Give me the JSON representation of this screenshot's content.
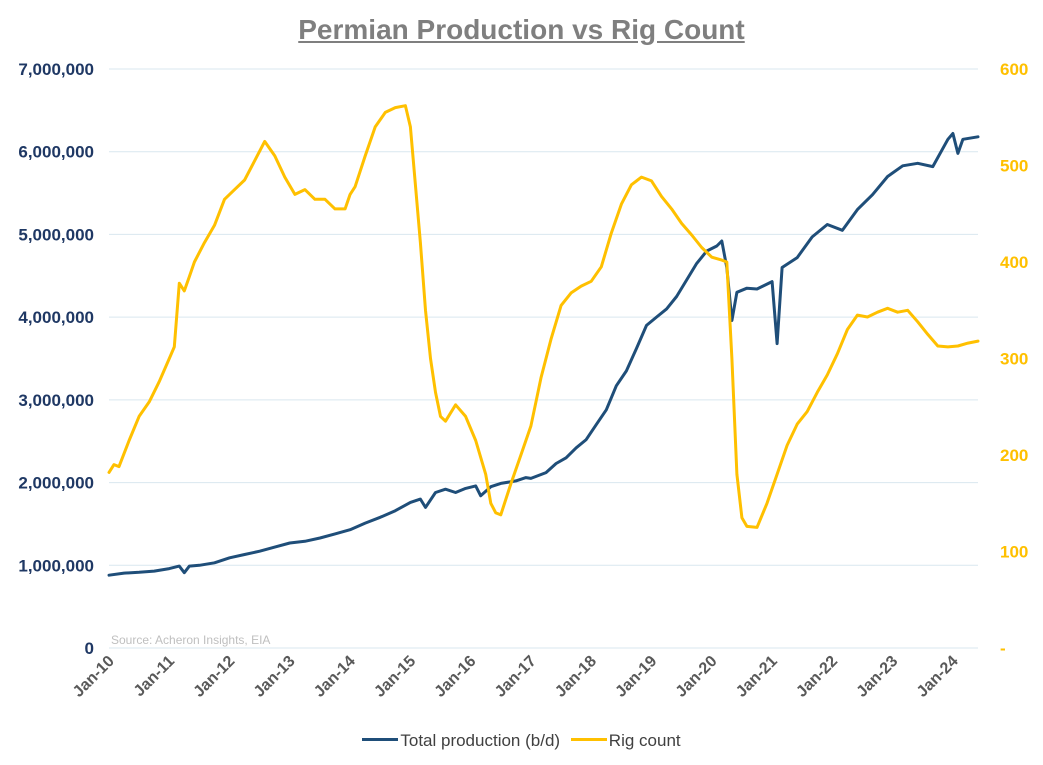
{
  "chart_data": {
    "type": "line",
    "title": "Permian Production vs Rig Count",
    "source": "Source: Acheron Insights, EIA",
    "x_tick_labels": [
      "Jan-10",
      "Jan-11",
      "Jan-12",
      "Jan-13",
      "Jan-14",
      "Jan-15",
      "Jan-16",
      "Jan-17",
      "Jan-18",
      "Jan-19",
      "Jan-20",
      "Jan-21",
      "Jan-22",
      "Jan-23",
      "Jan-24"
    ],
    "x_range": [
      "2010-01",
      "2024-06"
    ],
    "y_left": {
      "min": 0,
      "max": 7000000,
      "tick_labels": [
        "0",
        "1,000,000",
        "2,000,000",
        "3,000,000",
        "4,000,000",
        "5,000,000",
        "6,000,000",
        "7,000,000"
      ],
      "tick_values": [
        0,
        1000000,
        2000000,
        3000000,
        4000000,
        5000000,
        6000000,
        7000000
      ]
    },
    "y_right": {
      "min": 0,
      "max": 600,
      "tick_labels": [
        "-",
        "100",
        "200",
        "300",
        "400",
        "500",
        "600"
      ],
      "tick_values": [
        0,
        100,
        200,
        300,
        400,
        500,
        600
      ]
    },
    "grid": true,
    "legend_position": "bottom",
    "colors": {
      "production": "#1f4e79",
      "rigs": "#ffc000",
      "left_axis": "#1f3864",
      "right_axis": "#ffc000",
      "grid": "#d9e7ef"
    },
    "series": [
      {
        "name": "Total production (b/d)",
        "axis": "left",
        "points": [
          [
            "2010-01",
            880000
          ],
          [
            "2010-04",
            905000
          ],
          [
            "2010-07",
            915000
          ],
          [
            "2010-10",
            930000
          ],
          [
            "2011-01",
            960000
          ],
          [
            "2011-03",
            990000
          ],
          [
            "2011-04",
            910000
          ],
          [
            "2011-05",
            990000
          ],
          [
            "2011-07",
            1000000
          ],
          [
            "2011-10",
            1030000
          ],
          [
            "2012-01",
            1090000
          ],
          [
            "2012-04",
            1130000
          ],
          [
            "2012-07",
            1170000
          ],
          [
            "2012-10",
            1220000
          ],
          [
            "2013-01",
            1270000
          ],
          [
            "2013-04",
            1290000
          ],
          [
            "2013-07",
            1330000
          ],
          [
            "2013-10",
            1380000
          ],
          [
            "2014-01",
            1430000
          ],
          [
            "2014-04",
            1510000
          ],
          [
            "2014-07",
            1580000
          ],
          [
            "2014-10",
            1660000
          ],
          [
            "2015-01",
            1760000
          ],
          [
            "2015-03",
            1800000
          ],
          [
            "2015-04",
            1700000
          ],
          [
            "2015-06",
            1880000
          ],
          [
            "2015-08",
            1920000
          ],
          [
            "2015-10",
            1880000
          ],
          [
            "2015-12",
            1930000
          ],
          [
            "2016-02",
            1960000
          ],
          [
            "2016-03",
            1840000
          ],
          [
            "2016-05",
            1950000
          ],
          [
            "2016-07",
            1990000
          ],
          [
            "2016-10",
            2020000
          ],
          [
            "2016-12",
            2060000
          ],
          [
            "2017-01",
            2050000
          ],
          [
            "2017-04",
            2120000
          ],
          [
            "2017-06",
            2230000
          ],
          [
            "2017-08",
            2300000
          ],
          [
            "2017-10",
            2420000
          ],
          [
            "2017-12",
            2520000
          ],
          [
            "2018-02",
            2700000
          ],
          [
            "2018-04",
            2880000
          ],
          [
            "2018-06",
            3170000
          ],
          [
            "2018-08",
            3350000
          ],
          [
            "2018-10",
            3620000
          ],
          [
            "2018-12",
            3900000
          ],
          [
            "2019-02",
            4000000
          ],
          [
            "2019-04",
            4100000
          ],
          [
            "2019-06",
            4250000
          ],
          [
            "2019-08",
            4450000
          ],
          [
            "2019-10",
            4650000
          ],
          [
            "2019-12",
            4800000
          ],
          [
            "2020-02",
            4860000
          ],
          [
            "2020-03",
            4920000
          ],
          [
            "2020-04",
            4600000
          ],
          [
            "2020-05",
            3960000
          ],
          [
            "2020-06",
            4300000
          ],
          [
            "2020-08",
            4350000
          ],
          [
            "2020-10",
            4340000
          ],
          [
            "2020-12",
            4400000
          ],
          [
            "2021-01",
            4430000
          ],
          [
            "2021-02",
            3680000
          ],
          [
            "2021-03",
            4600000
          ],
          [
            "2021-06",
            4720000
          ],
          [
            "2021-09",
            4970000
          ],
          [
            "2021-12",
            5120000
          ],
          [
            "2022-03",
            5050000
          ],
          [
            "2022-06",
            5300000
          ],
          [
            "2022-09",
            5480000
          ],
          [
            "2022-12",
            5700000
          ],
          [
            "2023-03",
            5830000
          ],
          [
            "2023-06",
            5860000
          ],
          [
            "2023-09",
            5820000
          ],
          [
            "2023-12",
            6150000
          ],
          [
            "2024-01",
            6220000
          ],
          [
            "2024-02",
            5980000
          ],
          [
            "2024-03",
            6150000
          ],
          [
            "2024-06",
            6180000
          ]
        ]
      },
      {
        "name": "Rig count",
        "axis": "right",
        "points": [
          [
            "2010-01",
            182
          ],
          [
            "2010-02",
            190
          ],
          [
            "2010-03",
            188
          ],
          [
            "2010-05",
            215
          ],
          [
            "2010-07",
            240
          ],
          [
            "2010-09",
            255
          ],
          [
            "2010-11",
            276
          ],
          [
            "2011-01",
            300
          ],
          [
            "2011-02",
            312
          ],
          [
            "2011-03",
            378
          ],
          [
            "2011-04",
            370
          ],
          [
            "2011-05",
            385
          ],
          [
            "2011-06",
            400
          ],
          [
            "2011-08",
            420
          ],
          [
            "2011-10",
            438
          ],
          [
            "2011-12",
            465
          ],
          [
            "2012-02",
            475
          ],
          [
            "2012-04",
            485
          ],
          [
            "2012-06",
            505
          ],
          [
            "2012-08",
            525
          ],
          [
            "2012-10",
            510
          ],
          [
            "2012-12",
            488
          ],
          [
            "2013-02",
            470
          ],
          [
            "2013-04",
            475
          ],
          [
            "2013-06",
            465
          ],
          [
            "2013-08",
            465
          ],
          [
            "2013-10",
            455
          ],
          [
            "2013-12",
            455
          ],
          [
            "2014-01",
            470
          ],
          [
            "2014-02",
            478
          ],
          [
            "2014-04",
            510
          ],
          [
            "2014-06",
            540
          ],
          [
            "2014-08",
            555
          ],
          [
            "2014-10",
            560
          ],
          [
            "2014-12",
            562
          ],
          [
            "2015-01",
            540
          ],
          [
            "2015-02",
            480
          ],
          [
            "2015-03",
            420
          ],
          [
            "2015-04",
            350
          ],
          [
            "2015-05",
            300
          ],
          [
            "2015-06",
            265
          ],
          [
            "2015-07",
            240
          ],
          [
            "2015-08",
            235
          ],
          [
            "2015-10",
            252
          ],
          [
            "2015-12",
            240
          ],
          [
            "2016-02",
            215
          ],
          [
            "2016-04",
            180
          ],
          [
            "2016-05",
            150
          ],
          [
            "2016-06",
            140
          ],
          [
            "2016-07",
            138
          ],
          [
            "2016-09",
            170
          ],
          [
            "2016-11",
            200
          ],
          [
            "2017-01",
            230
          ],
          [
            "2017-03",
            280
          ],
          [
            "2017-05",
            320
          ],
          [
            "2017-07",
            355
          ],
          [
            "2017-09",
            368
          ],
          [
            "2017-11",
            375
          ],
          [
            "2018-01",
            380
          ],
          [
            "2018-03",
            395
          ],
          [
            "2018-05",
            430
          ],
          [
            "2018-07",
            460
          ],
          [
            "2018-09",
            480
          ],
          [
            "2018-11",
            488
          ],
          [
            "2019-01",
            484
          ],
          [
            "2019-03",
            468
          ],
          [
            "2019-05",
            455
          ],
          [
            "2019-07",
            440
          ],
          [
            "2019-09",
            428
          ],
          [
            "2019-11",
            415
          ],
          [
            "2020-01",
            405
          ],
          [
            "2020-03",
            402
          ],
          [
            "2020-04",
            400
          ],
          [
            "2020-05",
            300
          ],
          [
            "2020-06",
            180
          ],
          [
            "2020-07",
            135
          ],
          [
            "2020-08",
            126
          ],
          [
            "2020-10",
            125
          ],
          [
            "2020-12",
            150
          ],
          [
            "2021-02",
            180
          ],
          [
            "2021-04",
            210
          ],
          [
            "2021-06",
            232
          ],
          [
            "2021-08",
            245
          ],
          [
            "2021-10",
            265
          ],
          [
            "2021-12",
            283
          ],
          [
            "2022-02",
            305
          ],
          [
            "2022-04",
            330
          ],
          [
            "2022-06",
            345
          ],
          [
            "2022-08",
            343
          ],
          [
            "2022-10",
            348
          ],
          [
            "2022-12",
            352
          ],
          [
            "2023-02",
            348
          ],
          [
            "2023-04",
            350
          ],
          [
            "2023-06",
            338
          ],
          [
            "2023-08",
            325
          ],
          [
            "2023-10",
            313
          ],
          [
            "2023-12",
            312
          ],
          [
            "2024-02",
            313
          ],
          [
            "2024-04",
            316
          ],
          [
            "2024-06",
            318
          ]
        ]
      }
    ]
  }
}
